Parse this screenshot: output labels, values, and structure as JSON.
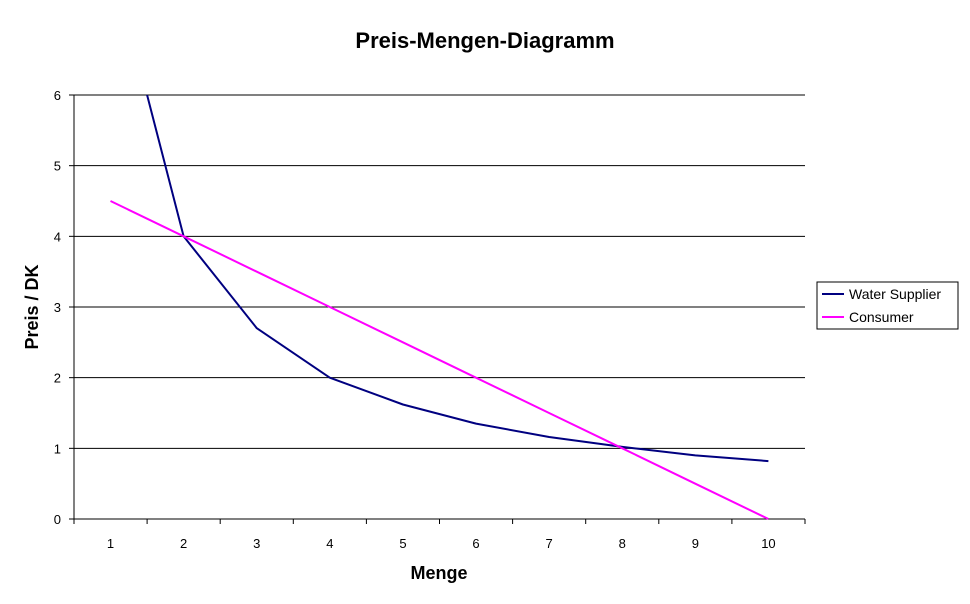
{
  "chart_data": {
    "type": "line",
    "title": "Preis-Mengen-Diagramm",
    "xlabel": "Menge",
    "ylabel": "Preis / DK",
    "categories": [
      1,
      2,
      3,
      4,
      5,
      6,
      7,
      8,
      9,
      10
    ],
    "ylim": [
      0,
      6
    ],
    "yticks": [
      0,
      1,
      2,
      3,
      4,
      5,
      6
    ],
    "grid": "horizontal",
    "legend": "right",
    "series": [
      {
        "name": "Water Supplier",
        "color": "#000080",
        "x": [
          1.5,
          2,
          3,
          4,
          5,
          6,
          7,
          8,
          9,
          10
        ],
        "y": [
          6.0,
          4.0,
          2.7,
          2.0,
          1.62,
          1.35,
          1.16,
          1.02,
          0.9,
          0.82
        ]
      },
      {
        "name": "Consumer",
        "color": "#FF00FF",
        "x": [
          1,
          2,
          3,
          4,
          5,
          6,
          7,
          8,
          9,
          10
        ],
        "y": [
          4.5,
          4.0,
          3.5,
          3.0,
          2.5,
          2.0,
          1.5,
          1.0,
          0.5,
          0.0
        ]
      }
    ]
  }
}
